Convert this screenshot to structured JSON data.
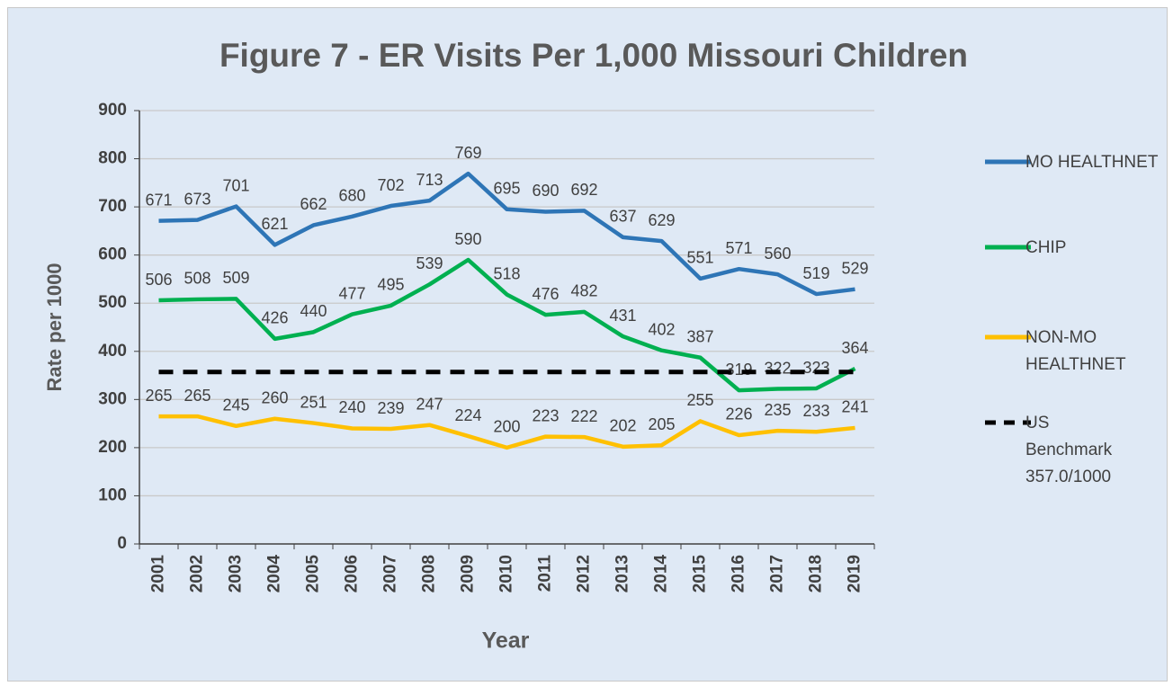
{
  "chart_data": {
    "type": "line",
    "title": "Figure 7 - ER Visits Per 1,000 Missouri Children",
    "x_label": "Year",
    "y_label": "Rate per 1000",
    "categories": [
      "2001",
      "2002",
      "2003",
      "2004",
      "2005",
      "2006",
      "2007",
      "2008",
      "2009",
      "2010",
      "2011",
      "2012",
      "2013",
      "2014",
      "2015",
      "2016",
      "2017",
      "2018",
      "2019"
    ],
    "series": [
      {
        "name": "MO HEALTHNET",
        "color": "#2e75b6",
        "dashed": false,
        "data_labels": true,
        "values": [
          671,
          673,
          701,
          621,
          662,
          680,
          702,
          713,
          769,
          695,
          690,
          692,
          637,
          629,
          551,
          571,
          560,
          519,
          529
        ]
      },
      {
        "name": "CHIP",
        "color": "#00b050",
        "dashed": false,
        "data_labels": true,
        "values": [
          506,
          508,
          509,
          426,
          440,
          477,
          495,
          539,
          590,
          518,
          476,
          482,
          431,
          402,
          387,
          319,
          322,
          323,
          364
        ]
      },
      {
        "name": "NON-MO HEALTHNET",
        "color": "#ffc000",
        "dashed": false,
        "data_labels": true,
        "values": [
          265,
          265,
          245,
          260,
          251,
          240,
          239,
          247,
          224,
          200,
          223,
          222,
          202,
          205,
          255,
          226,
          235,
          233,
          241
        ]
      },
      {
        "name": "US Benchmark 357.0/1000",
        "color": "#000000",
        "dashed": true,
        "data_labels": false,
        "values": [
          357,
          357,
          357,
          357,
          357,
          357,
          357,
          357,
          357,
          357,
          357,
          357,
          357,
          357,
          357,
          357,
          357,
          357,
          357
        ]
      }
    ],
    "ylim": [
      0,
      900
    ],
    "yticks": [
      0,
      100,
      200,
      300,
      400,
      500,
      600,
      700,
      800,
      900
    ],
    "grid": true,
    "legend": "right"
  }
}
